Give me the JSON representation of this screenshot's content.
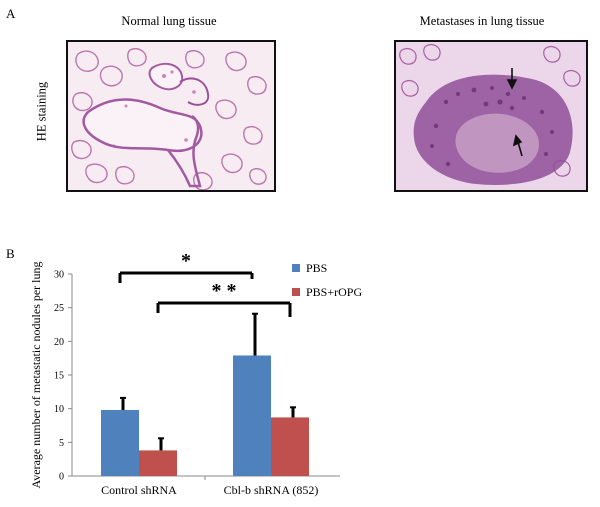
{
  "panel_a": {
    "letter": "A",
    "row_label": "HE  staining",
    "left_title": "Normal lung tissue",
    "right_title": "Metastases in lung tissue"
  },
  "panel_b": {
    "letter": "B"
  },
  "colors": {
    "pbs": "#4f81bd",
    "pbs_ropg": "#c0504d",
    "tissue_bg": "#f6e7f0",
    "tissue_cell": "#a25aa0",
    "tissue_mass": "#8f4f98"
  },
  "chart_data": {
    "type": "bar",
    "categories": [
      "Control shRNA",
      "Cbl-b shRNA (852)"
    ],
    "series": [
      {
        "name": "PBS",
        "values": [
          9.8,
          17.9
        ],
        "error": [
          1.8,
          6.2
        ]
      },
      {
        "name": "PBS+rOPG",
        "values": [
          3.8,
          8.7
        ],
        "error": [
          1.8,
          1.5
        ]
      }
    ],
    "ylabel": "Average number of metastatic nodules per lung",
    "ylim": [
      0,
      30
    ],
    "yticks": [
      0,
      5,
      10,
      15,
      20,
      25,
      30
    ],
    "legend_position": "top-right",
    "grid": false,
    "significance": [
      {
        "label": "*",
        "from": "Control shRNA / PBS",
        "to": "Cbl-b shRNA (852) / PBS"
      },
      {
        "label": "* *",
        "from": "Control shRNA / PBS+rOPG",
        "to": "Cbl-b shRNA (852) / PBS+rOPG"
      }
    ]
  }
}
